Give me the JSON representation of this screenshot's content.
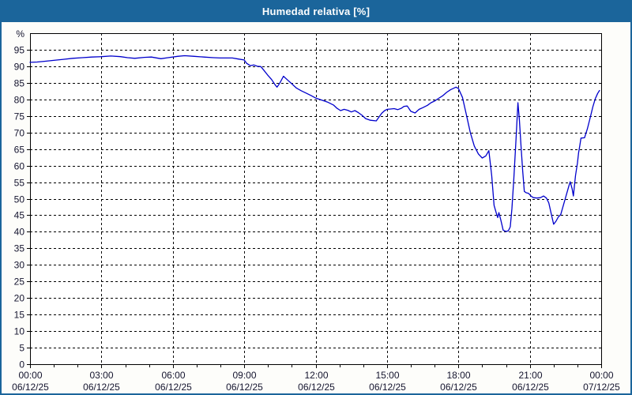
{
  "header": {
    "title": "Humedad relativa [%]"
  },
  "colors": {
    "frame_blue": "#1b659b",
    "title_text": "#ffffff",
    "outer_background": "#fdfdfa",
    "plot_background": "#ffffff",
    "plot_border": "#000000",
    "grid": "#000000",
    "axis_text": "#14142e",
    "line": "#0000cc"
  },
  "chart_data": {
    "type": "line",
    "title": "Humedad relativa [%]",
    "xlabel": "",
    "ylabel": "%",
    "percent_label": "%",
    "ylim": [
      0,
      100
    ],
    "y_tick_step": 5,
    "y_tick_labels": [
      "0",
      "5",
      "10",
      "15",
      "20",
      "25",
      "30",
      "35",
      "40",
      "45",
      "50",
      "55",
      "60",
      "65",
      "70",
      "75",
      "80",
      "85",
      "90",
      "95"
    ],
    "x_range_hours": [
      0,
      24
    ],
    "x_major_step_hours": 3,
    "x_minor_step_hours": 1,
    "grid": "dashed",
    "legend": "none",
    "x_ticks": [
      {
        "time": "00:00",
        "date": "06/12/25"
      },
      {
        "time": "03:00",
        "date": "06/12/25"
      },
      {
        "time": "06:00",
        "date": "06/12/25"
      },
      {
        "time": "09:00",
        "date": "06/12/25"
      },
      {
        "time": "12:00",
        "date": "06/12/25"
      },
      {
        "time": "15:00",
        "date": "06/12/25"
      },
      {
        "time": "18:00",
        "date": "06/12/25"
      },
      {
        "time": "21:00",
        "date": "06/12/25"
      },
      {
        "time": "00:00",
        "date": "07/12/25"
      }
    ],
    "series": [
      {
        "name": "Humedad relativa",
        "unit": "%",
        "color": "#0000cc",
        "points": [
          [
            0,
            91.2
          ],
          [
            0.3,
            91.3
          ],
          [
            0.6,
            91.5
          ],
          [
            1,
            91.8
          ],
          [
            1.4,
            92.1
          ],
          [
            1.8,
            92.4
          ],
          [
            2.2,
            92.6
          ],
          [
            2.6,
            92.8
          ],
          [
            3,
            92.9
          ],
          [
            3.4,
            93.1
          ],
          [
            3.8,
            92.9
          ],
          [
            4.1,
            92.6
          ],
          [
            4.4,
            92.4
          ],
          [
            4.8,
            92.7
          ],
          [
            5.1,
            92.8
          ],
          [
            5.5,
            92.3
          ],
          [
            5.8,
            92.6
          ],
          [
            6.2,
            93
          ],
          [
            6.5,
            93.2
          ],
          [
            6.9,
            93
          ],
          [
            7.3,
            92.8
          ],
          [
            7.7,
            92.6
          ],
          [
            8,
            92.5
          ],
          [
            8.5,
            92.5
          ],
          [
            8.75,
            92.2
          ],
          [
            9,
            91.9
          ],
          [
            9.1,
            90.9
          ],
          [
            9.25,
            90.2
          ],
          [
            9.4,
            90.4
          ],
          [
            9.55,
            90
          ],
          [
            9.7,
            89.9
          ],
          [
            9.85,
            88.6
          ],
          [
            10,
            87.2
          ],
          [
            10.15,
            86
          ],
          [
            10.3,
            84.4
          ],
          [
            10.38,
            83.7
          ],
          [
            10.5,
            85
          ],
          [
            10.65,
            87
          ],
          [
            10.8,
            86
          ],
          [
            11,
            84.7
          ],
          [
            11.2,
            83.4
          ],
          [
            11.4,
            82.6
          ],
          [
            11.6,
            81.9
          ],
          [
            11.8,
            81.2
          ],
          [
            12,
            80.4
          ],
          [
            12.25,
            79.8
          ],
          [
            12.5,
            79.2
          ],
          [
            12.75,
            78.3
          ],
          [
            12.9,
            77.3
          ],
          [
            13.05,
            76.6
          ],
          [
            13.2,
            77
          ],
          [
            13.35,
            76.7
          ],
          [
            13.5,
            76.2
          ],
          [
            13.65,
            76.6
          ],
          [
            13.8,
            76
          ],
          [
            13.95,
            75.2
          ],
          [
            14.1,
            74.2
          ],
          [
            14.3,
            73.7
          ],
          [
            14.55,
            73.5
          ],
          [
            14.65,
            74.5
          ],
          [
            14.78,
            75.8
          ],
          [
            14.9,
            76.6
          ],
          [
            15,
            77
          ],
          [
            15.15,
            77.1
          ],
          [
            15.3,
            77.2
          ],
          [
            15.45,
            76.9
          ],
          [
            15.6,
            77.3
          ],
          [
            15.72,
            77.9
          ],
          [
            15.85,
            78
          ],
          [
            16,
            76.4
          ],
          [
            16.18,
            75.9
          ],
          [
            16.35,
            77
          ],
          [
            16.5,
            77.5
          ],
          [
            16.7,
            78.2
          ],
          [
            16.85,
            79
          ],
          [
            17,
            79.5
          ],
          [
            17.17,
            80.3
          ],
          [
            17.34,
            81.1
          ],
          [
            17.5,
            82.1
          ],
          [
            17.67,
            82.9
          ],
          [
            17.9,
            83.7
          ],
          [
            18,
            83.3
          ],
          [
            18.17,
            80.6
          ],
          [
            18.34,
            75.2
          ],
          [
            18.5,
            70
          ],
          [
            18.67,
            65.9
          ],
          [
            18.84,
            63.5
          ],
          [
            19,
            62.3
          ],
          [
            19.15,
            62.9
          ],
          [
            19.28,
            64.5
          ],
          [
            19.4,
            57
          ],
          [
            19.5,
            48
          ],
          [
            19.58,
            46
          ],
          [
            19.65,
            44.3
          ],
          [
            19.7,
            45.8
          ],
          [
            19.78,
            43.6
          ],
          [
            19.88,
            40.5
          ],
          [
            20,
            40.1
          ],
          [
            20.1,
            40.3
          ],
          [
            20.18,
            41.5
          ],
          [
            20.25,
            47
          ],
          [
            20.33,
            56
          ],
          [
            20.42,
            68
          ],
          [
            20.5,
            79
          ],
          [
            20.56,
            74
          ],
          [
            20.63,
            66
          ],
          [
            20.7,
            58.5
          ],
          [
            20.77,
            52.2
          ],
          [
            20.85,
            51.8
          ],
          [
            20.95,
            51.6
          ],
          [
            21.05,
            50.8
          ],
          [
            21.15,
            50.3
          ],
          [
            21.3,
            50.2
          ],
          [
            21.45,
            50.3
          ],
          [
            21.58,
            50.8
          ],
          [
            21.7,
            50.2
          ],
          [
            21.8,
            48.7
          ],
          [
            21.9,
            45.5
          ],
          [
            22,
            42.3
          ],
          [
            22.1,
            43.2
          ],
          [
            22.2,
            44.5
          ],
          [
            22.3,
            45.2
          ],
          [
            22.45,
            49
          ],
          [
            22.55,
            51.5
          ],
          [
            22.65,
            54
          ],
          [
            22.7,
            55.1
          ],
          [
            22.78,
            53
          ],
          [
            22.83,
            50.8
          ],
          [
            22.92,
            57
          ],
          [
            23,
            60.7
          ],
          [
            23.05,
            63.9
          ],
          [
            23.1,
            66
          ],
          [
            23.15,
            68.3
          ],
          [
            23.3,
            68.4
          ],
          [
            23.42,
            71.1
          ],
          [
            23.53,
            74.2
          ],
          [
            23.65,
            77.8
          ],
          [
            23.75,
            80.2
          ],
          [
            23.85,
            81.8
          ],
          [
            23.93,
            82.7
          ]
        ]
      }
    ]
  }
}
